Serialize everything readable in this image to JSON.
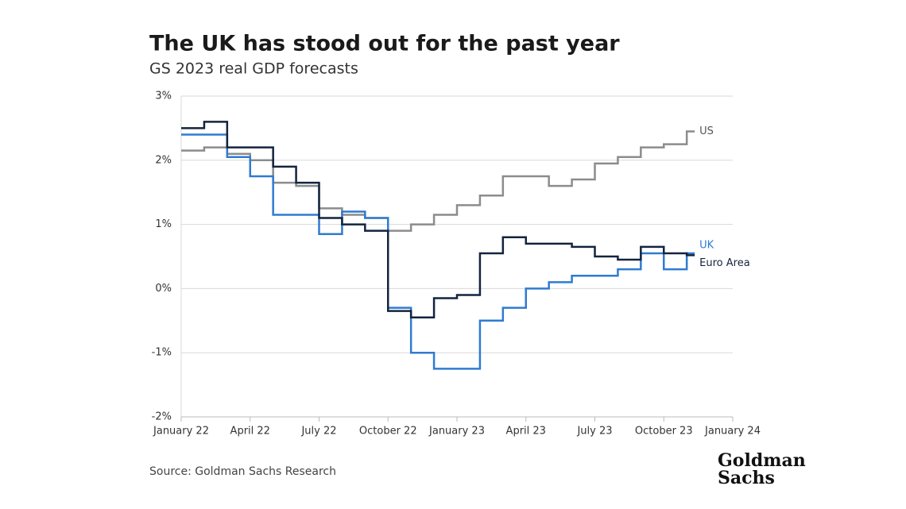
{
  "chart_data": {
    "type": "line",
    "title": "The UK has stood out for the past year",
    "subtitle": "GS 2023 real GDP forecasts",
    "source": "Source: Goldman Sachs Research",
    "logo": [
      "Goldman",
      "Sachs"
    ],
    "x": [
      "2022-01",
      "2022-02",
      "2022-03",
      "2022-04",
      "2022-05",
      "2022-06",
      "2022-07",
      "2022-08",
      "2022-09",
      "2022-10",
      "2022-11",
      "2022-12",
      "2023-01",
      "2023-02",
      "2023-03",
      "2023-04",
      "2023-05",
      "2023-06",
      "2023-07",
      "2023-08",
      "2023-09",
      "2023-10",
      "2023-11"
    ],
    "xlim": [
      "2022-01",
      "2024-01"
    ],
    "xticks": [
      {
        "value": "2022-01",
        "label": "January 22"
      },
      {
        "value": "2022-04",
        "label": "April 22"
      },
      {
        "value": "2022-07",
        "label": "July 22"
      },
      {
        "value": "2022-10",
        "label": "October 22"
      },
      {
        "value": "2023-01",
        "label": "January 23"
      },
      {
        "value": "2023-04",
        "label": "April 23"
      },
      {
        "value": "2023-07",
        "label": "July 23"
      },
      {
        "value": "2023-10",
        "label": "October 23"
      },
      {
        "value": "2024-01",
        "label": "January 24"
      }
    ],
    "ylim": [
      -2,
      3
    ],
    "yticks": [
      {
        "value": -2,
        "label": "-2%"
      },
      {
        "value": -1,
        "label": "-1%"
      },
      {
        "value": 0,
        "label": "0%"
      },
      {
        "value": 1,
        "label": "1%"
      },
      {
        "value": 2,
        "label": "2%"
      },
      {
        "value": 3,
        "label": "3%"
      }
    ],
    "grid": true,
    "step": true,
    "series": [
      {
        "name": "US",
        "color": "#8c8c8c",
        "values": [
          2.15,
          2.2,
          2.1,
          2.0,
          1.65,
          1.6,
          1.25,
          1.15,
          1.1,
          0.9,
          1.0,
          1.15,
          1.3,
          1.45,
          1.75,
          1.75,
          1.6,
          1.7,
          1.95,
          2.05,
          2.2,
          2.25,
          2.45
        ]
      },
      {
        "name": "UK",
        "color": "#2f7bd1",
        "values": [
          2.4,
          2.4,
          2.05,
          1.75,
          1.15,
          1.15,
          0.85,
          1.2,
          1.1,
          -0.3,
          -1.0,
          -1.25,
          -1.25,
          -0.5,
          -0.3,
          0.0,
          0.1,
          0.2,
          0.2,
          0.3,
          0.55,
          0.3,
          0.55
        ]
      },
      {
        "name": "Euro Area",
        "color": "#14243e",
        "values": [
          2.5,
          2.6,
          2.2,
          2.2,
          1.9,
          1.65,
          1.1,
          1.0,
          0.9,
          -0.35,
          -0.45,
          -0.15,
          -0.1,
          0.55,
          0.8,
          0.7,
          0.7,
          0.65,
          0.5,
          0.45,
          0.65,
          0.55,
          0.52
        ]
      }
    ]
  }
}
